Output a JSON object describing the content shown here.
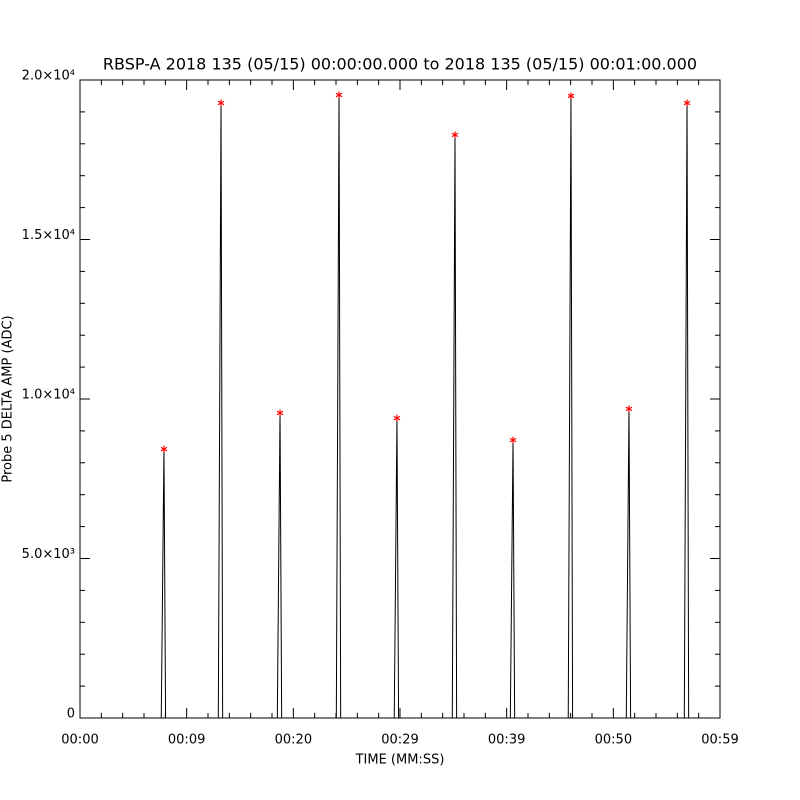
{
  "chart_data": {
    "type": "line",
    "title": "RBSP-A 2018 135 (05/15) 00:00:00.000 to 2018 135 (05/15) 00:01:00.000",
    "x_label": "TIME (MM:SS)",
    "y_label": "Probe 5 DELTA AMP (ADC)",
    "xlim": [
      0,
      59
    ],
    "ylim": [
      0,
      20000
    ],
    "xticks": [
      {
        "value": 0,
        "label": "00:00"
      },
      {
        "value": 9.83,
        "label": "00:09"
      },
      {
        "value": 19.67,
        "label": "00:20"
      },
      {
        "value": 29.5,
        "label": "00:29"
      },
      {
        "value": 39.33,
        "label": "00:39"
      },
      {
        "value": 49.17,
        "label": "00:50"
      },
      {
        "value": 59,
        "label": "00:59"
      }
    ],
    "yticks": [
      0,
      {
        "value": 5000,
        "label": "5.0×10³"
      },
      {
        "value": 10000,
        "label": "1.0×10⁴"
      },
      {
        "value": 15000,
        "label": "1.5×10⁴"
      },
      {
        "value": 20000,
        "label": "2.0×10⁴"
      }
    ],
    "xminorticks": [
      1.97,
      3.93,
      5.9,
      7.87,
      11.8,
      13.77,
      15.73,
      17.7,
      21.63,
      23.6,
      25.57,
      27.53,
      31.47,
      33.43,
      35.4,
      37.37,
      41.3,
      43.27,
      45.23,
      47.2,
      51.13,
      53.1,
      55.07,
      57.03
    ],
    "yminorticks": [
      1000,
      2000,
      3000,
      4000,
      6000,
      7000,
      8000,
      9000,
      11000,
      12000,
      13000,
      14000,
      16000,
      17000,
      18000,
      19000
    ],
    "series": [
      {
        "color": "#000000",
        "marker": "none",
        "x": [
          0,
          7.49,
          7.74,
          7.89,
          12.75,
          13.0,
          13.15,
          18.19,
          18.44,
          18.59,
          23.63,
          23.88,
          24.03,
          28.97,
          29.22,
          29.37,
          34.32,
          34.57,
          34.72,
          39.67,
          39.92,
          40.07,
          45.01,
          45.26,
          45.41,
          50.36,
          50.61,
          50.76,
          55.71,
          55.96,
          56.11,
          59
        ],
        "values": [
          0,
          0,
          8430,
          0,
          0,
          19280,
          0,
          0,
          9560,
          0,
          0,
          19530,
          0,
          0,
          9400,
          0,
          0,
          18280,
          0,
          0,
          8710,
          0,
          0,
          19500,
          0,
          0,
          9690,
          0,
          0,
          19280,
          0,
          0
        ]
      },
      {
        "color": "#ff0000",
        "marker": "asterisk",
        "x": [
          7.74,
          13.0,
          18.44,
          23.88,
          29.22,
          34.57,
          39.92,
          45.26,
          50.61,
          55.96
        ],
        "values": [
          8430,
          19280,
          9560,
          19530,
          9400,
          18280,
          8710,
          19500,
          9690,
          19280
        ]
      }
    ]
  }
}
